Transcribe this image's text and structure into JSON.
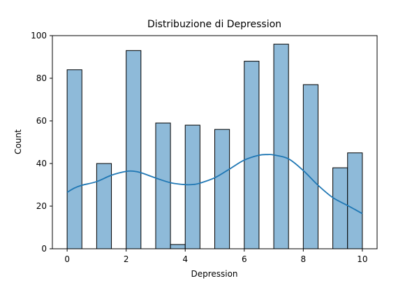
{
  "chart_data": {
    "type": "bar",
    "title": "Distribuzione di Depression",
    "xlabel": "Depression",
    "ylabel": "Count",
    "xlim": [
      -0.5,
      10.5
    ],
    "ylim": [
      0,
      100
    ],
    "xticks": [
      0,
      2,
      4,
      6,
      8,
      10
    ],
    "yticks": [
      0,
      20,
      40,
      60,
      80,
      100
    ],
    "bins": [
      {
        "x0": 0.0,
        "x1": 0.5,
        "value": 84
      },
      {
        "x0": 0.5,
        "x1": 1.0,
        "value": 0
      },
      {
        "x0": 1.0,
        "x1": 1.5,
        "value": 40
      },
      {
        "x0": 1.5,
        "x1": 2.0,
        "value": 0
      },
      {
        "x0": 2.0,
        "x1": 2.5,
        "value": 93
      },
      {
        "x0": 2.5,
        "x1": 3.0,
        "value": 0
      },
      {
        "x0": 3.0,
        "x1": 3.5,
        "value": 59
      },
      {
        "x0": 3.5,
        "x1": 4.0,
        "value": 2
      },
      {
        "x0": 4.0,
        "x1": 4.5,
        "value": 58
      },
      {
        "x0": 4.5,
        "x1": 5.0,
        "value": 0
      },
      {
        "x0": 5.0,
        "x1": 5.5,
        "value": 56
      },
      {
        "x0": 5.5,
        "x1": 6.0,
        "value": 0
      },
      {
        "x0": 6.0,
        "x1": 6.5,
        "value": 88
      },
      {
        "x0": 6.5,
        "x1": 7.0,
        "value": 0
      },
      {
        "x0": 7.0,
        "x1": 7.5,
        "value": 96
      },
      {
        "x0": 7.5,
        "x1": 8.0,
        "value": 0
      },
      {
        "x0": 8.0,
        "x1": 8.5,
        "value": 77
      },
      {
        "x0": 8.5,
        "x1": 9.0,
        "value": 0
      },
      {
        "x0": 9.0,
        "x1": 9.5,
        "value": 38
      },
      {
        "x0": 9.5,
        "x1": 10.0,
        "value": 45
      }
    ],
    "kde": {
      "x": [
        0.0,
        0.25,
        0.5,
        1.0,
        1.5,
        2.0,
        2.25,
        2.5,
        3.0,
        3.5,
        4.0,
        4.3,
        4.5,
        5.0,
        5.5,
        6.0,
        6.5,
        6.8,
        7.0,
        7.5,
        8.0,
        8.5,
        9.0,
        9.5,
        10.0
      ],
      "y": [
        26.5,
        28.5,
        29.8,
        31.5,
        34.5,
        36.3,
        36.4,
        35.7,
        33.2,
        31.0,
        30.1,
        30.2,
        30.8,
        33.3,
        37.4,
        41.6,
        43.9,
        44.2,
        44.0,
        42.2,
        36.7,
        29.8,
        24.0,
        20.3,
        16.5
      ]
    },
    "grid": false,
    "legend": "none",
    "colors": {
      "bar_fill": "#8ebad9",
      "bar_edge": "#000000",
      "kde_line": "#1f77b4"
    }
  }
}
